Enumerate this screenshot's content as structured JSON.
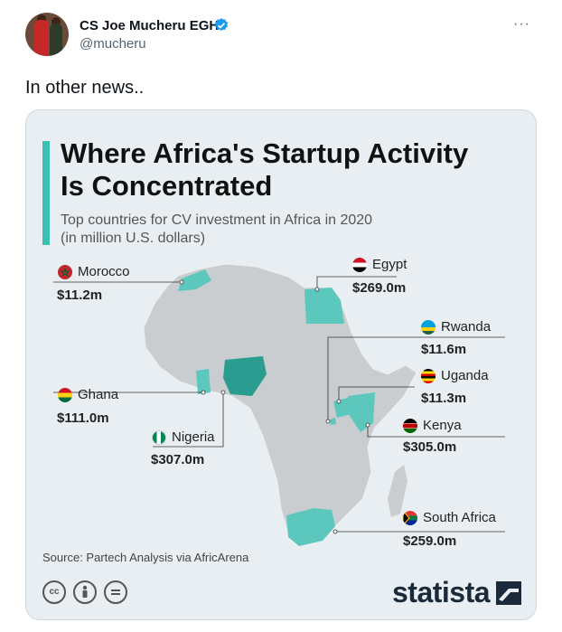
{
  "author": {
    "name": "CS Joe Mucheru EGH",
    "handle": "@mucheru",
    "more_label": "···"
  },
  "tweet": {
    "text": "In other news.."
  },
  "infographic": {
    "title_line1": "Where Africa's Startup Activity",
    "title_line2": "Is Concentrated",
    "subtitle_line1": "Top countries for CV investment in Africa in 2020",
    "subtitle_line2": "(in million U.S. dollars)",
    "source": "Source: Partech Analysis via AfricArena",
    "brand": "statista",
    "accent_color": "#3bbfb3",
    "countries": [
      {
        "name": "Morocco",
        "value": "$11.2m"
      },
      {
        "name": "Egypt",
        "value": "$269.0m"
      },
      {
        "name": "Rwanda",
        "value": "$11.6m"
      },
      {
        "name": "Uganda",
        "value": "$11.3m"
      },
      {
        "name": "Ghana",
        "value": "$111.0m"
      },
      {
        "name": "Kenya",
        "value": "$305.0m"
      },
      {
        "name": "Nigeria",
        "value": "$307.0m"
      },
      {
        "name": "South Africa",
        "value": "$259.0m"
      }
    ],
    "license_icons": [
      "cc",
      "by",
      "nd"
    ]
  }
}
